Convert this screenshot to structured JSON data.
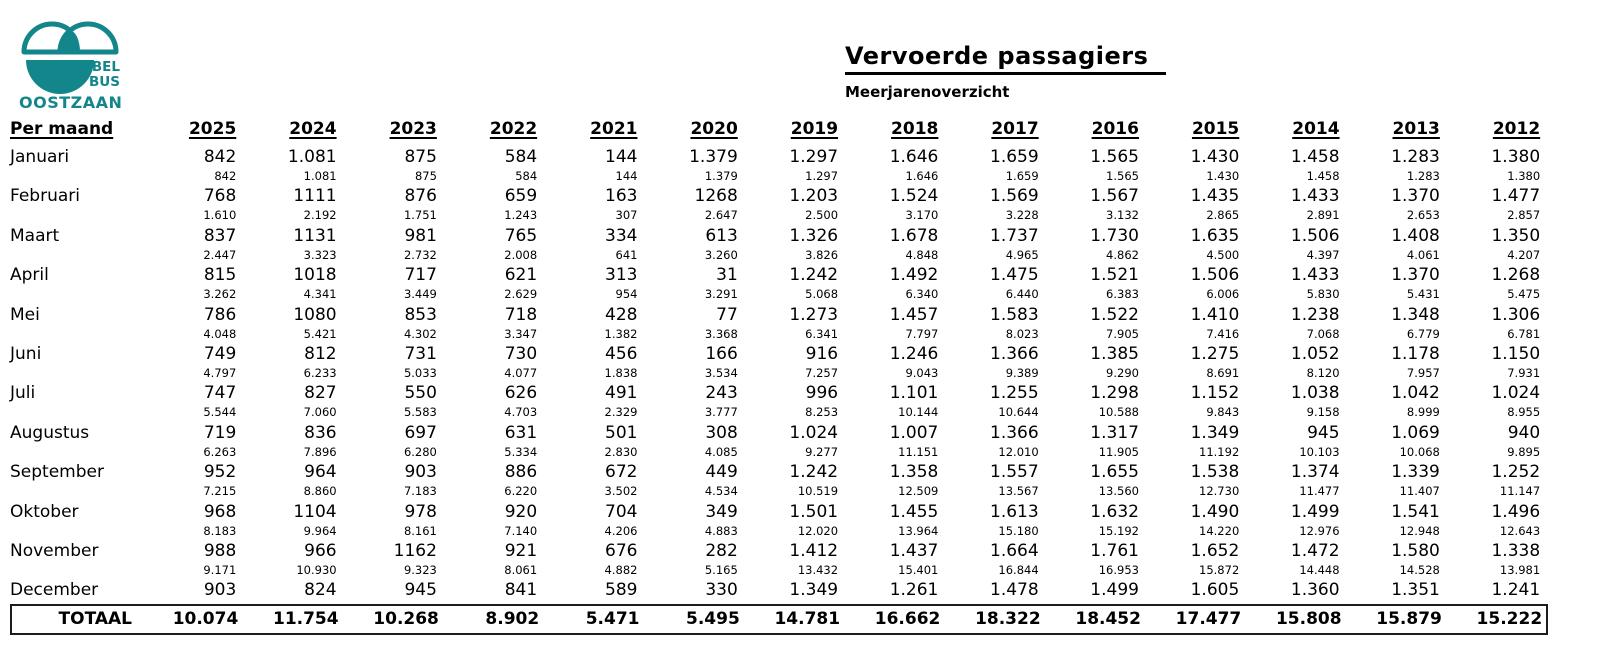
{
  "colors": {
    "brand_teal": "#13868C",
    "text": "#000000"
  },
  "logo": {
    "line1": "BEL",
    "line2": "BUS",
    "line3": "OOSTZAAN"
  },
  "header": {
    "title": "Vervoerde passagiers",
    "subtitle": "Meerjarenoverzicht"
  },
  "table": {
    "row_header_label": "Per maand",
    "years": [
      "2025",
      "2024",
      "2023",
      "2022",
      "2021",
      "2020",
      "2019",
      "2018",
      "2017",
      "2016",
      "2015",
      "2014",
      "2013",
      "2012"
    ],
    "months": [
      {
        "label": "Januari",
        "values": [
          "842",
          "1.081",
          "875",
          "584",
          "144",
          "1.379",
          "1.297",
          "1.646",
          "1.659",
          "1.565",
          "1.430",
          "1.458",
          "1.283",
          "1.380"
        ],
        "cumulative": [
          "842",
          "1.081",
          "875",
          "584",
          "144",
          "1.379",
          "1.297",
          "1.646",
          "1.659",
          "1.565",
          "1.430",
          "1.458",
          "1.283",
          "1.380"
        ]
      },
      {
        "label": "Februari",
        "values": [
          "768",
          "1111",
          "876",
          "659",
          "163",
          "1268",
          "1.203",
          "1.524",
          "1.569",
          "1.567",
          "1.435",
          "1.433",
          "1.370",
          "1.477"
        ],
        "cumulative": [
          "1.610",
          "2.192",
          "1.751",
          "1.243",
          "307",
          "2.647",
          "2.500",
          "3.170",
          "3.228",
          "3.132",
          "2.865",
          "2.891",
          "2.653",
          "2.857"
        ]
      },
      {
        "label": "Maart",
        "values": [
          "837",
          "1131",
          "981",
          "765",
          "334",
          "613",
          "1.326",
          "1.678",
          "1.737",
          "1.730",
          "1.635",
          "1.506",
          "1.408",
          "1.350"
        ],
        "cumulative": [
          "2.447",
          "3.323",
          "2.732",
          "2.008",
          "641",
          "3.260",
          "3.826",
          "4.848",
          "4.965",
          "4.862",
          "4.500",
          "4.397",
          "4.061",
          "4.207"
        ]
      },
      {
        "label": "April",
        "values": [
          "815",
          "1018",
          "717",
          "621",
          "313",
          "31",
          "1.242",
          "1.492",
          "1.475",
          "1.521",
          "1.506",
          "1.433",
          "1.370",
          "1.268"
        ],
        "cumulative": [
          "3.262",
          "4.341",
          "3.449",
          "2.629",
          "954",
          "3.291",
          "5.068",
          "6.340",
          "6.440",
          "6.383",
          "6.006",
          "5.830",
          "5.431",
          "5.475"
        ]
      },
      {
        "label": "Mei",
        "values": [
          "786",
          "1080",
          "853",
          "718",
          "428",
          "77",
          "1.273",
          "1.457",
          "1.583",
          "1.522",
          "1.410",
          "1.238",
          "1.348",
          "1.306"
        ],
        "cumulative": [
          "4.048",
          "5.421",
          "4.302",
          "3.347",
          "1.382",
          "3.368",
          "6.341",
          "7.797",
          "8.023",
          "7.905",
          "7.416",
          "7.068",
          "6.779",
          "6.781"
        ]
      },
      {
        "label": "Juni",
        "values": [
          "749",
          "812",
          "731",
          "730",
          "456",
          "166",
          "916",
          "1.246",
          "1.366",
          "1.385",
          "1.275",
          "1.052",
          "1.178",
          "1.150"
        ],
        "cumulative": [
          "4.797",
          "6.233",
          "5.033",
          "4.077",
          "1.838",
          "3.534",
          "7.257",
          "9.043",
          "9.389",
          "9.290",
          "8.691",
          "8.120",
          "7.957",
          "7.931"
        ]
      },
      {
        "label": "Juli",
        "values": [
          "747",
          "827",
          "550",
          "626",
          "491",
          "243",
          "996",
          "1.101",
          "1.255",
          "1.298",
          "1.152",
          "1.038",
          "1.042",
          "1.024"
        ],
        "cumulative": [
          "5.544",
          "7.060",
          "5.583",
          "4.703",
          "2.329",
          "3.777",
          "8.253",
          "10.144",
          "10.644",
          "10.588",
          "9.843",
          "9.158",
          "8.999",
          "8.955"
        ]
      },
      {
        "label": "Augustus",
        "values": [
          "719",
          "836",
          "697",
          "631",
          "501",
          "308",
          "1.024",
          "1.007",
          "1.366",
          "1.317",
          "1.349",
          "945",
          "1.069",
          "940"
        ],
        "cumulative": [
          "6.263",
          "7.896",
          "6.280",
          "5.334",
          "2.830",
          "4.085",
          "9.277",
          "11.151",
          "12.010",
          "11.905",
          "11.192",
          "10.103",
          "10.068",
          "9.895"
        ]
      },
      {
        "label": "September",
        "values": [
          "952",
          "964",
          "903",
          "886",
          "672",
          "449",
          "1.242",
          "1.358",
          "1.557",
          "1.655",
          "1.538",
          "1.374",
          "1.339",
          "1.252"
        ],
        "cumulative": [
          "7.215",
          "8.860",
          "7.183",
          "6.220",
          "3.502",
          "4.534",
          "10.519",
          "12.509",
          "13.567",
          "13.560",
          "12.730",
          "11.477",
          "11.407",
          "11.147"
        ]
      },
      {
        "label": "Oktober",
        "values": [
          "968",
          "1104",
          "978",
          "920",
          "704",
          "349",
          "1.501",
          "1.455",
          "1.613",
          "1.632",
          "1.490",
          "1.499",
          "1.541",
          "1.496"
        ],
        "cumulative": [
          "8.183",
          "9.964",
          "8.161",
          "7.140",
          "4.206",
          "4.883",
          "12.020",
          "13.964",
          "15.180",
          "15.192",
          "14.220",
          "12.976",
          "12.948",
          "12.643"
        ]
      },
      {
        "label": "November",
        "values": [
          "988",
          "966",
          "1162",
          "921",
          "676",
          "282",
          "1.412",
          "1.437",
          "1.664",
          "1.761",
          "1.652",
          "1.472",
          "1.580",
          "1.338"
        ],
        "cumulative": [
          "9.171",
          "10.930",
          "9.323",
          "8.061",
          "4.882",
          "5.165",
          "13.432",
          "15.401",
          "16.844",
          "16.953",
          "15.872",
          "14.448",
          "14.528",
          "13.981"
        ]
      },
      {
        "label": "December",
        "values": [
          "903",
          "824",
          "945",
          "841",
          "589",
          "330",
          "1.349",
          "1.261",
          "1.478",
          "1.499",
          "1.605",
          "1.360",
          "1.351",
          "1.241"
        ],
        "cumulative": []
      }
    ],
    "total": {
      "label": "TOTAAL",
      "values": [
        "10.074",
        "11.754",
        "10.268",
        "8.902",
        "5.471",
        "5.495",
        "14.781",
        "16.662",
        "18.322",
        "18.452",
        "17.477",
        "15.808",
        "15.879",
        "15.222"
      ]
    }
  }
}
